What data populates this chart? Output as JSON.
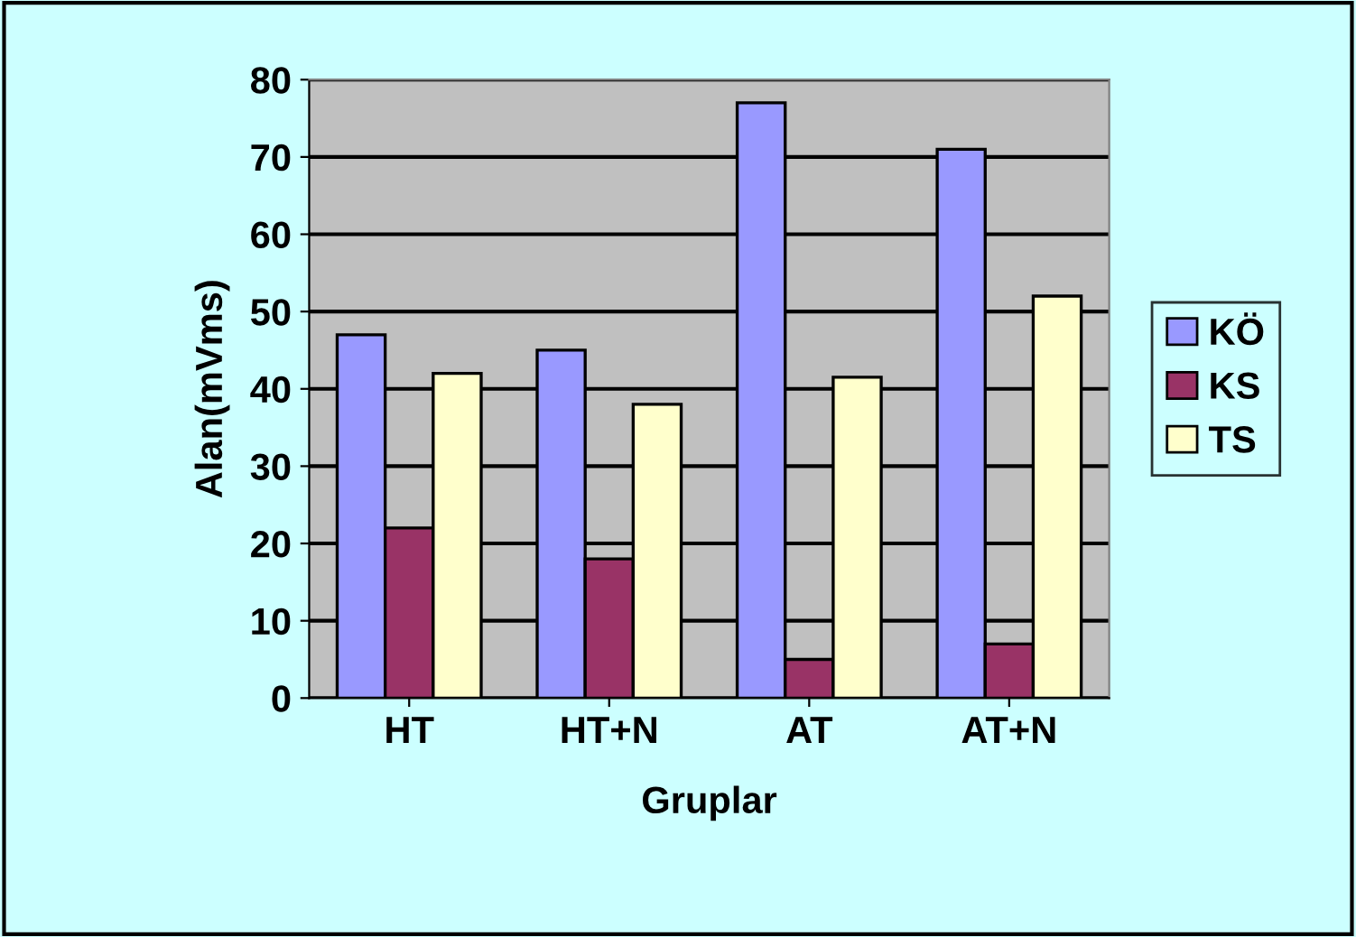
{
  "chart_data": {
    "type": "bar",
    "xlabel": "Gruplar",
    "ylabel": "Alan(mVms)",
    "categories": [
      "HT",
      "HT+N",
      "AT",
      "AT+N"
    ],
    "series": [
      {
        "name": "KÖ",
        "color": "#9999ff",
        "values": [
          47,
          45,
          77,
          71
        ]
      },
      {
        "name": "KS",
        "color": "#993366",
        "values": [
          22,
          18,
          5,
          7
        ]
      },
      {
        "name": "TS",
        "color": "#ffffcc",
        "values": [
          42,
          38,
          41.5,
          52
        ]
      }
    ],
    "ylim": [
      0,
      80
    ],
    "yticks": [
      0,
      10,
      20,
      30,
      40,
      50,
      60,
      70,
      80
    ],
    "grid": "y",
    "legend": "right"
  }
}
